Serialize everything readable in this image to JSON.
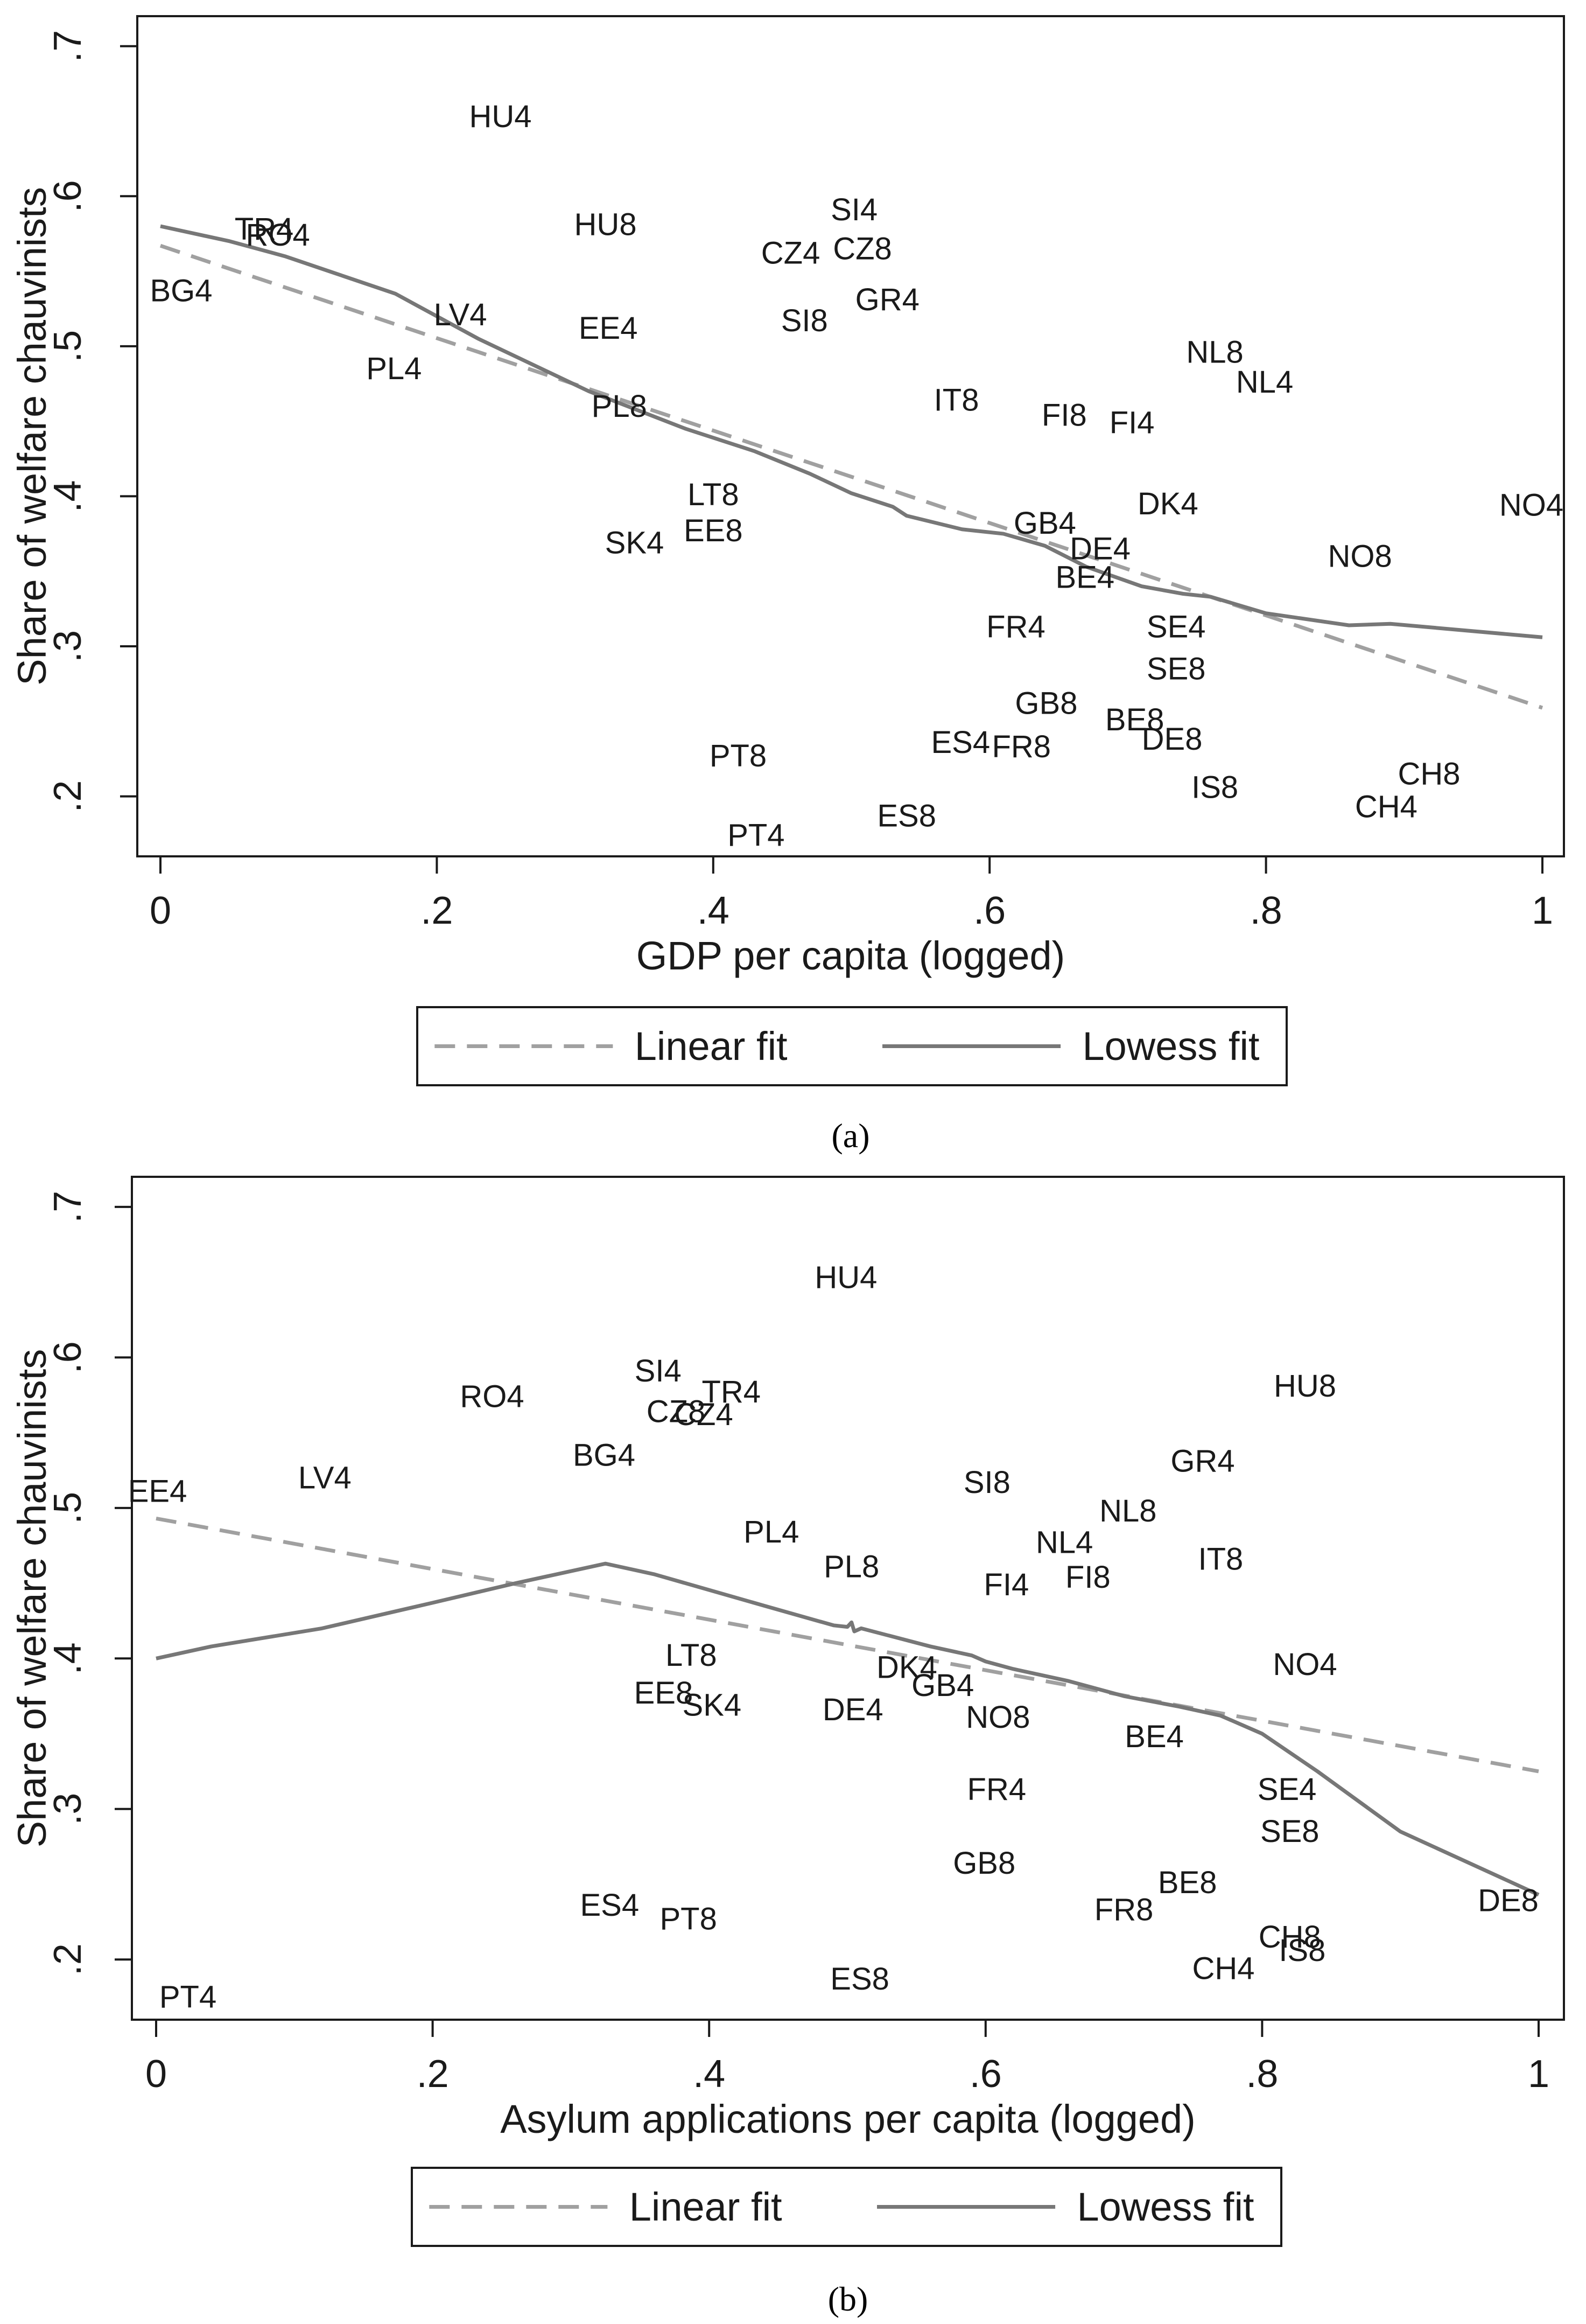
{
  "chart_data": [
    {
      "type": "scatter",
      "caption": "(a)",
      "xlabel": "GDP per capita (logged)",
      "ylabel": "Share of welfare chauvinists",
      "xlim": [
        0,
        1
      ],
      "ylim": [
        0.16,
        0.72
      ],
      "xticks": [
        0,
        0.2,
        0.4,
        0.6,
        0.8,
        1
      ],
      "xtick_labels": [
        "0",
        ".2",
        ".4",
        ".6",
        ".8",
        "1"
      ],
      "yticks": [
        0.2,
        0.3,
        0.4,
        0.5,
        0.6,
        0.7
      ],
      "ytick_labels": [
        ".2",
        ".3",
        ".4",
        ".5",
        ".6",
        ".7"
      ],
      "grid": false,
      "legend_position": "bottom",
      "legend": [
        {
          "label": "Linear fit",
          "style": "dashed",
          "color": "#a0a0a0"
        },
        {
          "label": "Lowess fit",
          "style": "solid",
          "color": "#777777"
        }
      ],
      "points": [
        {
          "label": "HU4",
          "x": 0.246,
          "y": 0.653
        },
        {
          "label": "TR4",
          "x": 0.075,
          "y": 0.578
        },
        {
          "label": "RO4",
          "x": 0.085,
          "y": 0.574
        },
        {
          "label": "BG4",
          "x": 0.015,
          "y": 0.537
        },
        {
          "label": "HU8",
          "x": 0.322,
          "y": 0.581
        },
        {
          "label": "SI4",
          "x": 0.502,
          "y": 0.591
        },
        {
          "label": "CZ4",
          "x": 0.456,
          "y": 0.562
        },
        {
          "label": "CZ8",
          "x": 0.508,
          "y": 0.565
        },
        {
          "label": "GR4",
          "x": 0.526,
          "y": 0.531
        },
        {
          "label": "SI8",
          "x": 0.466,
          "y": 0.517
        },
        {
          "label": "LV4",
          "x": 0.217,
          "y": 0.521
        },
        {
          "label": "EE4",
          "x": 0.324,
          "y": 0.512
        },
        {
          "label": "PL4",
          "x": 0.169,
          "y": 0.485
        },
        {
          "label": "PL8",
          "x": 0.332,
          "y": 0.46
        },
        {
          "label": "IT8",
          "x": 0.576,
          "y": 0.464
        },
        {
          "label": "FI8",
          "x": 0.654,
          "y": 0.454
        },
        {
          "label": "FI4",
          "x": 0.703,
          "y": 0.449
        },
        {
          "label": "NL8",
          "x": 0.763,
          "y": 0.496
        },
        {
          "label": "NL4",
          "x": 0.799,
          "y": 0.476
        },
        {
          "label": "LT8",
          "x": 0.4,
          "y": 0.401
        },
        {
          "label": "SK4",
          "x": 0.343,
          "y": 0.369
        },
        {
          "label": "EE8",
          "x": 0.4,
          "y": 0.377
        },
        {
          "label": "GB4",
          "x": 0.64,
          "y": 0.382
        },
        {
          "label": "DK4",
          "x": 0.729,
          "y": 0.395
        },
        {
          "label": "DE4",
          "x": 0.68,
          "y": 0.365
        },
        {
          "label": "BE4",
          "x": 0.669,
          "y": 0.346
        },
        {
          "label": "NO4",
          "x": 0.992,
          "y": 0.394
        },
        {
          "label": "NO8",
          "x": 0.868,
          "y": 0.36
        },
        {
          "label": "FR4",
          "x": 0.619,
          "y": 0.313
        },
        {
          "label": "SE4",
          "x": 0.735,
          "y": 0.313
        },
        {
          "label": "SE8",
          "x": 0.735,
          "y": 0.285
        },
        {
          "label": "GB8",
          "x": 0.641,
          "y": 0.262
        },
        {
          "label": "BE8",
          "x": 0.705,
          "y": 0.251
        },
        {
          "label": "DE8",
          "x": 0.732,
          "y": 0.238
        },
        {
          "label": "ES4",
          "x": 0.579,
          "y": 0.236
        },
        {
          "label": "FR8",
          "x": 0.623,
          "y": 0.233
        },
        {
          "label": "IS8",
          "x": 0.763,
          "y": 0.206
        },
        {
          "label": "CH8",
          "x": 0.918,
          "y": 0.215
        },
        {
          "label": "CH4",
          "x": 0.887,
          "y": 0.193
        },
        {
          "label": "PT8",
          "x": 0.418,
          "y": 0.227
        },
        {
          "label": "ES8",
          "x": 0.54,
          "y": 0.187
        },
        {
          "label": "PT4",
          "x": 0.431,
          "y": 0.174
        }
      ],
      "linear_fit": {
        "x": [
          0,
          1
        ],
        "y": [
          0.567,
          0.259
        ]
      },
      "lowess_fit": {
        "x": [
          0,
          0.05,
          0.09,
          0.17,
          0.23,
          0.31,
          0.38,
          0.43,
          0.47,
          0.5,
          0.53,
          0.54,
          0.58,
          0.61,
          0.64,
          0.67,
          0.71,
          0.74,
          0.76,
          0.8,
          0.86,
          0.89,
          1.0
        ],
        "y": [
          0.58,
          0.57,
          0.56,
          0.535,
          0.505,
          0.47,
          0.445,
          0.43,
          0.415,
          0.402,
          0.393,
          0.387,
          0.378,
          0.375,
          0.367,
          0.353,
          0.34,
          0.335,
          0.333,
          0.322,
          0.314,
          0.315,
          0.306
        ]
      }
    },
    {
      "type": "scatter",
      "caption": "(b)",
      "xlabel": "Asylum applications per capita (logged)",
      "ylabel": "Share of welfare chauvinists",
      "xlim": [
        0,
        1
      ],
      "ylim": [
        0.16,
        0.72
      ],
      "xticks": [
        0,
        0.2,
        0.4,
        0.6,
        0.8,
        1
      ],
      "xtick_labels": [
        "0",
        ".2",
        ".4",
        ".6",
        ".8",
        "1"
      ],
      "yticks": [
        0.2,
        0.3,
        0.4,
        0.5,
        0.6,
        0.7
      ],
      "ytick_labels": [
        ".2",
        ".3",
        ".4",
        ".5",
        ".6",
        ".7"
      ],
      "grid": false,
      "legend_position": "bottom",
      "legend": [
        {
          "label": "Linear fit",
          "style": "dashed",
          "color": "#a0a0a0"
        },
        {
          "label": "Lowess fit",
          "style": "solid",
          "color": "#777777"
        }
      ],
      "points": [
        {
          "label": "HU4",
          "x": 0.499,
          "y": 0.653
        },
        {
          "label": "HU8",
          "x": 0.831,
          "y": 0.581
        },
        {
          "label": "RO4",
          "x": 0.243,
          "y": 0.574
        },
        {
          "label": "SI4",
          "x": 0.363,
          "y": 0.591
        },
        {
          "label": "TR4",
          "x": 0.416,
          "y": 0.577
        },
        {
          "label": "CZ8",
          "x": 0.376,
          "y": 0.564
        },
        {
          "label": "CZ4",
          "x": 0.396,
          "y": 0.562
        },
        {
          "label": "BG4",
          "x": 0.324,
          "y": 0.535
        },
        {
          "label": "GR4",
          "x": 0.757,
          "y": 0.531
        },
        {
          "label": "LV4",
          "x": 0.122,
          "y": 0.52
        },
        {
          "label": "EE4",
          "x": 0.001,
          "y": 0.511
        },
        {
          "label": "SI8",
          "x": 0.601,
          "y": 0.517
        },
        {
          "label": "NL8",
          "x": 0.703,
          "y": 0.498
        },
        {
          "label": "NL4",
          "x": 0.657,
          "y": 0.477
        },
        {
          "label": "IT8",
          "x": 0.77,
          "y": 0.466
        },
        {
          "label": "PL4",
          "x": 0.445,
          "y": 0.484
        },
        {
          "label": "PL8",
          "x": 0.503,
          "y": 0.461
        },
        {
          "label": "FI8",
          "x": 0.674,
          "y": 0.454
        },
        {
          "label": "FI4",
          "x": 0.615,
          "y": 0.449
        },
        {
          "label": "NO4",
          "x": 0.831,
          "y": 0.396
        },
        {
          "label": "LT8",
          "x": 0.387,
          "y": 0.402
        },
        {
          "label": "DK4",
          "x": 0.543,
          "y": 0.394
        },
        {
          "label": "GB4",
          "x": 0.569,
          "y": 0.382
        },
        {
          "label": "EE8",
          "x": 0.367,
          "y": 0.377
        },
        {
          "label": "SK4",
          "x": 0.402,
          "y": 0.369
        },
        {
          "label": "DE4",
          "x": 0.504,
          "y": 0.366
        },
        {
          "label": "NO8",
          "x": 0.609,
          "y": 0.361
        },
        {
          "label": "BE4",
          "x": 0.722,
          "y": 0.348
        },
        {
          "label": "FR4",
          "x": 0.608,
          "y": 0.313
        },
        {
          "label": "SE4",
          "x": 0.818,
          "y": 0.313
        },
        {
          "label": "SE8",
          "x": 0.82,
          "y": 0.285
        },
        {
          "label": "GB8",
          "x": 0.599,
          "y": 0.264
        },
        {
          "label": "BE8",
          "x": 0.746,
          "y": 0.251
        },
        {
          "label": "DE8",
          "x": 0.978,
          "y": 0.239
        },
        {
          "label": "ES4",
          "x": 0.328,
          "y": 0.236
        },
        {
          "label": "PT8",
          "x": 0.385,
          "y": 0.227
        },
        {
          "label": "FR8",
          "x": 0.7,
          "y": 0.233
        },
        {
          "label": "CH8",
          "x": 0.82,
          "y": 0.215
        },
        {
          "label": "IS8",
          "x": 0.829,
          "y": 0.206
        },
        {
          "label": "CH4",
          "x": 0.772,
          "y": 0.194
        },
        {
          "label": "ES8",
          "x": 0.509,
          "y": 0.187
        },
        {
          "label": "PT4",
          "x": 0.023,
          "y": 0.175
        }
      ],
      "linear_fit": {
        "x": [
          0,
          1
        ],
        "y": [
          0.493,
          0.325
        ]
      },
      "lowess_fit": {
        "x": [
          0,
          0.04,
          0.12,
          0.2,
          0.26,
          0.325,
          0.36,
          0.44,
          0.49,
          0.5,
          0.503,
          0.505,
          0.51,
          0.56,
          0.59,
          0.6,
          0.62,
          0.66,
          0.7,
          0.74,
          0.77,
          0.8,
          0.84,
          0.9,
          1.0
        ],
        "y": [
          0.4,
          0.408,
          0.42,
          0.437,
          0.45,
          0.463,
          0.456,
          0.435,
          0.422,
          0.421,
          0.424,
          0.418,
          0.42,
          0.408,
          0.402,
          0.398,
          0.393,
          0.385,
          0.375,
          0.368,
          0.362,
          0.35,
          0.325,
          0.285,
          0.243
        ]
      }
    }
  ]
}
